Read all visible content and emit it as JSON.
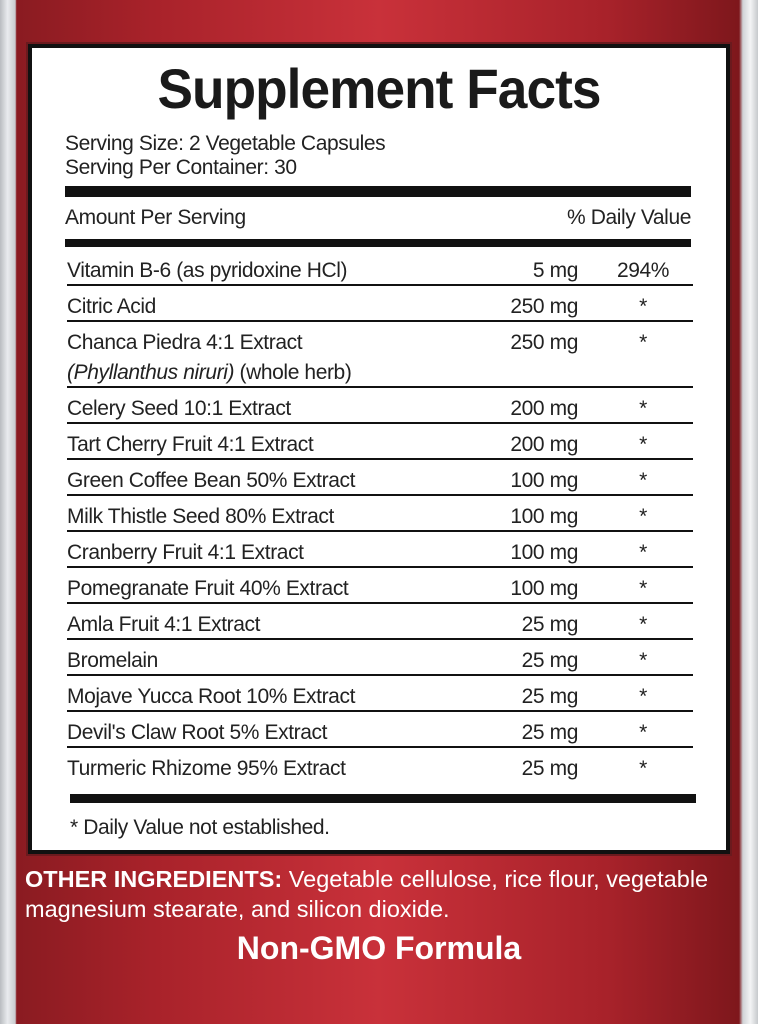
{
  "title": "Supplement Facts",
  "serving_size": "Serving Size: 2 Vegetable Capsules",
  "servings_per_container": "Serving Per Container: 30",
  "header": {
    "amount": "Amount Per Serving",
    "daily_value": "% Daily Value"
  },
  "ingredients": [
    {
      "name": "Vitamin B-6 (as pyridoxine HCl)",
      "amount": "5 mg",
      "dv": "294%"
    },
    {
      "name": "Citric Acid",
      "amount": "250 mg",
      "dv": "*"
    },
    {
      "name": "Chanca Piedra 4:1 Extract",
      "latin": "(Phyllanthus niruri)",
      "note": " (whole herb)",
      "amount": "250 mg",
      "dv": "*"
    },
    {
      "name": "Celery Seed 10:1 Extract",
      "amount": "200 mg",
      "dv": "*"
    },
    {
      "name": "Tart Cherry Fruit 4:1 Extract",
      "amount": "200 mg",
      "dv": "*"
    },
    {
      "name": "Green Coffee Bean 50% Extract",
      "amount": "100 mg",
      "dv": "*"
    },
    {
      "name": "Milk Thistle Seed 80% Extract",
      "amount": "100 mg",
      "dv": "*"
    },
    {
      "name": "Cranberry Fruit 4:1 Extract",
      "amount": "100 mg",
      "dv": "*"
    },
    {
      "name": "Pomegranate Fruit 40% Extract",
      "amount": "100 mg",
      "dv": "*"
    },
    {
      "name": "Amla Fruit 4:1 Extract",
      "amount": "25 mg",
      "dv": "*"
    },
    {
      "name": "Bromelain",
      "amount": "25 mg",
      "dv": "*"
    },
    {
      "name": "Mojave Yucca Root 10% Extract",
      "amount": "25 mg",
      "dv": "*"
    },
    {
      "name": "Devil's Claw Root 5% Extract",
      "amount": "25 mg",
      "dv": "*"
    },
    {
      "name": "Turmeric Rhizome 95% Extract",
      "amount": "25 mg",
      "dv": "*"
    }
  ],
  "footnote": "* Daily Value not established.",
  "other_ingredients": {
    "label": "OTHER INGREDIENTS:",
    "text": " Vegetable cellulose, rice flour, vegetable magnesium stearate, and silicon dioxide."
  },
  "badge": "Non-GMO Formula",
  "colors": {
    "label_red": "#c9313a",
    "text": "#222222"
  }
}
